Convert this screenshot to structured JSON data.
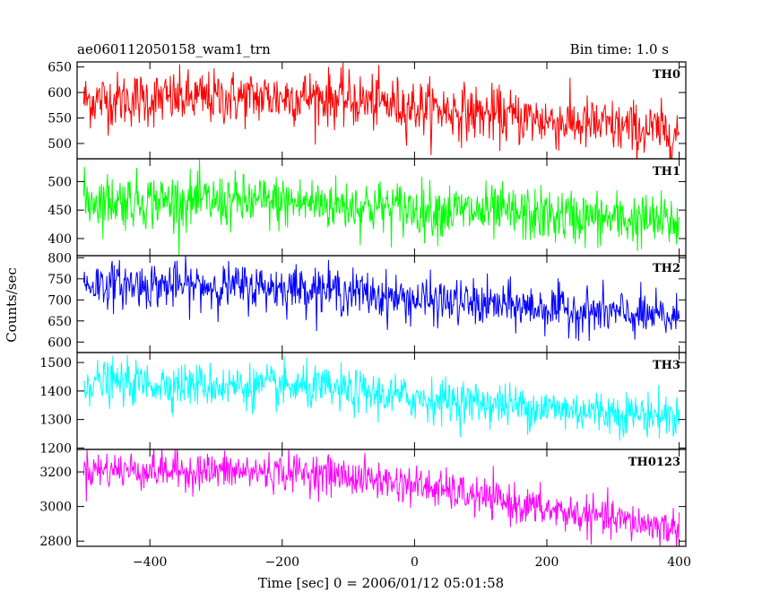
{
  "chart_data": {
    "type": "line",
    "title": "ae060112050158_wam1_trn",
    "bin_time": "Bin time: 1.0 s",
    "xlabel": "Time [sec] 0 = 2006/01/12 05:01:58",
    "ylabel": "Counts/sec",
    "xlim": [
      -510,
      410
    ],
    "x_ticks": [
      -400,
      -200,
      0,
      200,
      400
    ],
    "x_start": -500,
    "x_end": 400,
    "grid": false,
    "panels": [
      {
        "name": "TH0",
        "color": "#ff0000",
        "ylim": [
          470,
          660
        ],
        "y_ticks": [
          500,
          550,
          600,
          650
        ],
        "trend": [
          [
            -500,
            585
          ],
          [
            -150,
            592
          ],
          [
            0,
            572
          ],
          [
            200,
            545
          ],
          [
            400,
            520
          ]
        ],
        "noise": 27
      },
      {
        "name": "TH1",
        "color": "#00ff00",
        "ylim": [
          370,
          540
        ],
        "y_ticks": [
          400,
          450,
          500
        ],
        "trend": [
          [
            -500,
            468
          ],
          [
            -150,
            462
          ],
          [
            0,
            452
          ],
          [
            200,
            440
          ],
          [
            400,
            428
          ]
        ],
        "noise": 24
      },
      {
        "name": "TH2",
        "color": "#0000ff",
        "ylim": [
          575,
          805
        ],
        "y_ticks": [
          600,
          650,
          700,
          750,
          800
        ],
        "trend": [
          [
            -500,
            738
          ],
          [
            -150,
            728
          ],
          [
            0,
            700
          ],
          [
            200,
            680
          ],
          [
            400,
            655
          ]
        ],
        "noise": 27
      },
      {
        "name": "TH3",
        "color": "#00ffff",
        "ylim": [
          1195,
          1535
        ],
        "y_ticks": [
          1200,
          1300,
          1400,
          1500
        ],
        "trend": [
          [
            -500,
            1432
          ],
          [
            -150,
            1410
          ],
          [
            0,
            1375
          ],
          [
            200,
            1340
          ],
          [
            400,
            1310
          ]
        ],
        "noise": 38
      },
      {
        "name": "TH0123",
        "color": "#ff00ff",
        "ylim": [
          2770,
          3330
        ],
        "y_ticks": [
          2800,
          3000,
          3200
        ],
        "trend": [
          [
            -500,
            3215
          ],
          [
            -150,
            3195
          ],
          [
            0,
            3125
          ],
          [
            200,
            2980
          ],
          [
            400,
            2870
          ]
        ],
        "noise": 55
      }
    ]
  }
}
